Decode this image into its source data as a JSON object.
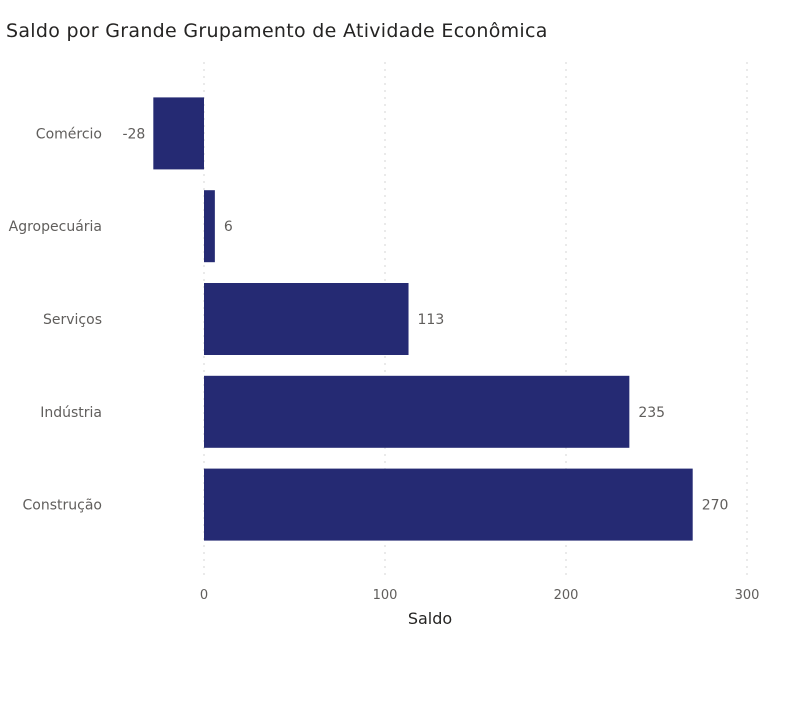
{
  "chart_data": {
    "type": "bar",
    "orientation": "horizontal",
    "title": "Saldo por Grande Grupamento de Atividade Econômica",
    "categories": [
      "Comércio",
      "Agropecuária",
      "Serviços",
      "Indústria",
      "Construção"
    ],
    "values": [
      -28,
      6,
      113,
      235,
      270
    ],
    "data_labels": [
      "-28",
      "6",
      "113",
      "235",
      "270"
    ],
    "xlabel": "Saldo",
    "ylabel": "",
    "xlim": [
      -50,
      300
    ],
    "xticks": [
      0,
      100,
      200,
      300
    ],
    "xtick_labels": [
      "0",
      "100",
      "200",
      "300"
    ],
    "grid": "vertical-dotted",
    "legend": "none",
    "bar_color": "#252a73"
  }
}
